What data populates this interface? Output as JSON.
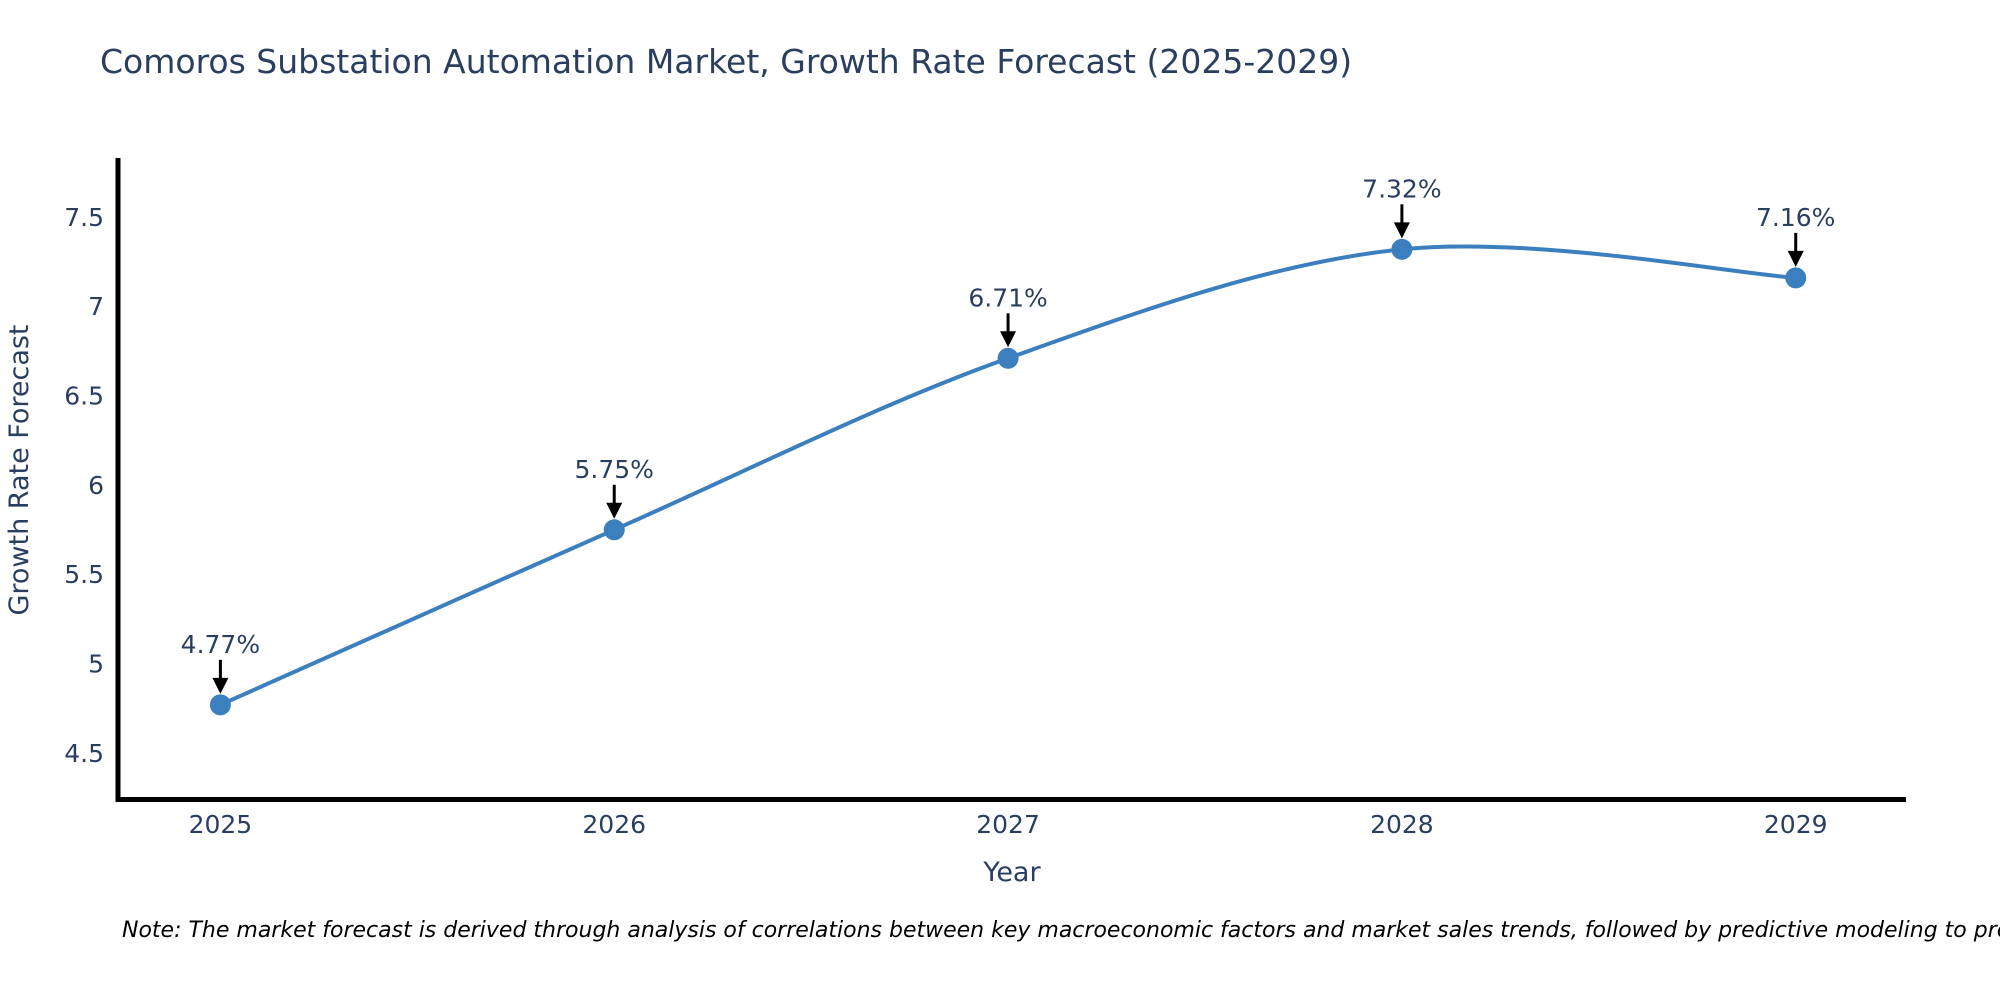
{
  "note": {
    "text": "Note: The market forecast is derived through analysis of correlations between key macroeconomic factors and market sales trends, followed by predictive modeling to project future sales"
  },
  "chart_data": {
    "type": "line",
    "title": "Comoros Substation Automation Market, Growth Rate Forecast (2025-2029)",
    "xlabel": "Year",
    "ylabel": "Growth Rate Forecast",
    "x": [
      2025,
      2026,
      2027,
      2028,
      2029
    ],
    "values": [
      4.77,
      5.75,
      6.71,
      7.32,
      7.16
    ],
    "point_labels": [
      "4.77%",
      "5.75%",
      "6.71%",
      "7.32%",
      "7.16%"
    ],
    "xtick_labels": [
      "2025",
      "2026",
      "2027",
      "2028",
      "2029"
    ],
    "ytick_values": [
      4.5,
      5,
      5.5,
      6,
      6.5,
      7,
      7.5
    ],
    "ytick_labels": [
      "4.5",
      "5",
      "5.5",
      "6",
      "6.5",
      "7",
      "7.5"
    ],
    "xlim": [
      2024.74,
      2029.28
    ],
    "ylim": [
      4.24,
      7.82
    ],
    "grid": false,
    "legend_position": "none",
    "line_shape": "spline",
    "line_color": "#3c7fbf",
    "marker_color": "#3c7fbf",
    "marker_radius": 10.5,
    "line_width": 4,
    "annotation_arrow_color": "#000000",
    "axis_line_color": "#000000",
    "text_color": "#2a3f5f",
    "note_color": "#000000"
  }
}
